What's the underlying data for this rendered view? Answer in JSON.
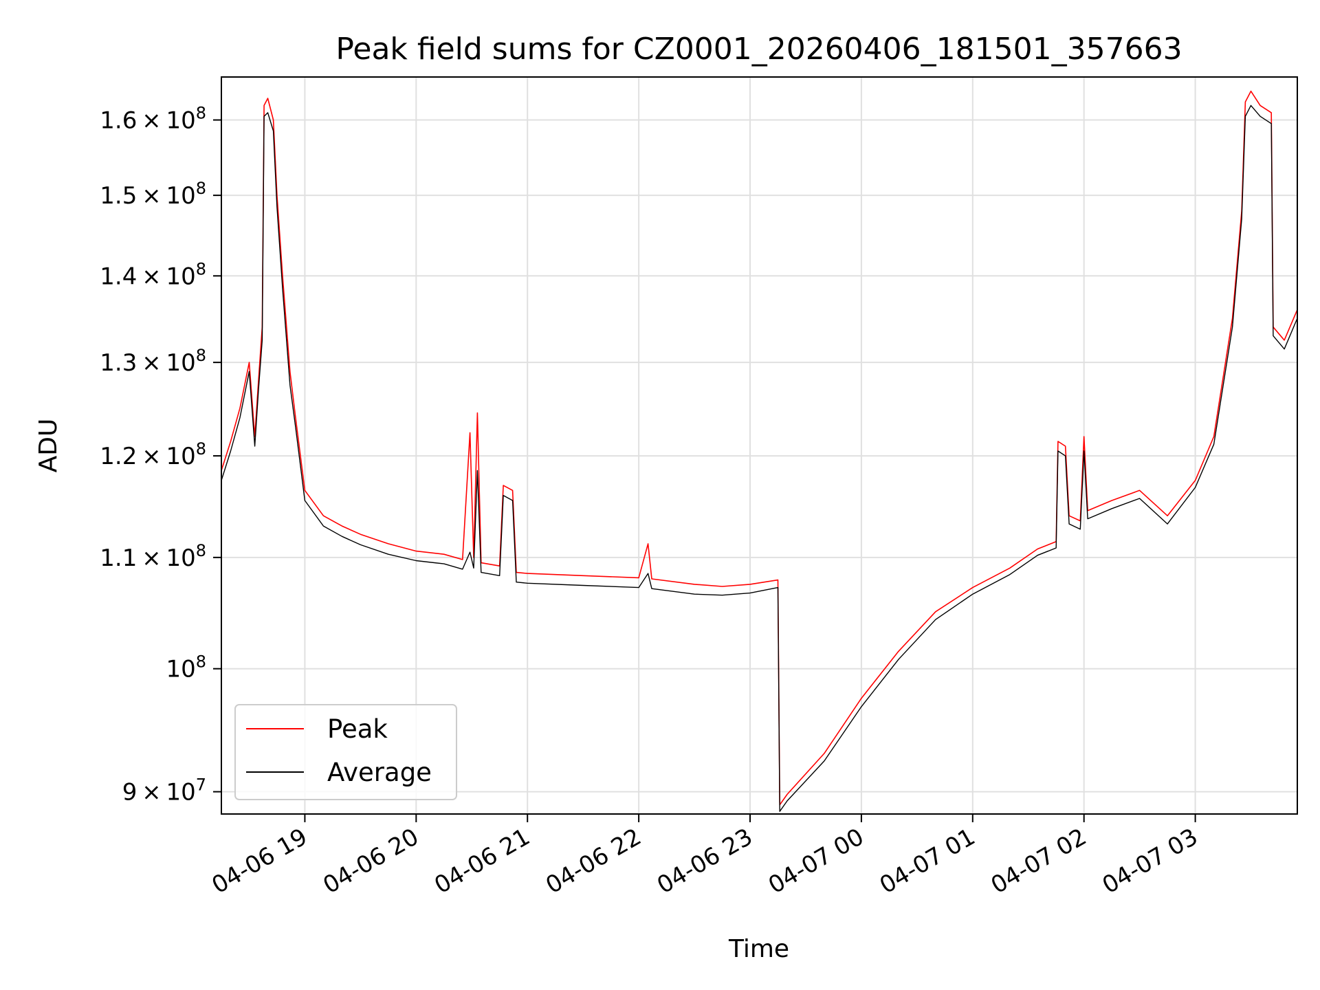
{
  "chart_data": {
    "type": "line",
    "title": "Peak field sums for CZ0001_20260406_181501_357663",
    "xlabel": "Time",
    "ylabel": "ADU",
    "y_scale": "log",
    "grid": true,
    "legend_placement": "lower-left",
    "xlim": [
      "2026-04-06 18:15",
      "2026-04-07 03:55"
    ],
    "ylim": [
      88300000,
      166000000
    ],
    "x_ticks": [
      {
        "value": "2026-04-06 19:00",
        "label": "04-06 19"
      },
      {
        "value": "2026-04-06 20:00",
        "label": "04-06 20"
      },
      {
        "value": "2026-04-06 21:00",
        "label": "04-06 21"
      },
      {
        "value": "2026-04-06 22:00",
        "label": "04-06 22"
      },
      {
        "value": "2026-04-06 23:00",
        "label": "04-06 23"
      },
      {
        "value": "2026-04-07 00:00",
        "label": "04-07 00"
      },
      {
        "value": "2026-04-07 01:00",
        "label": "04-07 01"
      },
      {
        "value": "2026-04-07 02:00",
        "label": "04-07 02"
      },
      {
        "value": "2026-04-07 03:00",
        "label": "04-07 03"
      }
    ],
    "y_ticks": [
      {
        "value": 90000000,
        "mantissa": "9",
        "exp": "7"
      },
      {
        "value": 100000000,
        "mantissa": "",
        "exp": "8"
      },
      {
        "value": 110000000,
        "mantissa": "1.1",
        "exp": "8"
      },
      {
        "value": 120000000,
        "mantissa": "1.2",
        "exp": "8"
      },
      {
        "value": 130000000,
        "mantissa": "1.3",
        "exp": "8"
      },
      {
        "value": 140000000,
        "mantissa": "1.4",
        "exp": "8"
      },
      {
        "value": 150000000,
        "mantissa": "1.5",
        "exp": "8"
      },
      {
        "value": 160000000,
        "mantissa": "1.6",
        "exp": "8"
      }
    ],
    "series": [
      {
        "name": "Peak",
        "color": "#ff0000",
        "points": [
          [
            "2026-04-06 18:15",
            118500000
          ],
          [
            "2026-04-06 18:20",
            121500000
          ],
          [
            "2026-04-06 18:25",
            125000000
          ],
          [
            "2026-04-06 18:30",
            130000000
          ],
          [
            "2026-04-06 18:33",
            122000000
          ],
          [
            "2026-04-06 18:35",
            128000000
          ],
          [
            "2026-04-06 18:37",
            134000000
          ],
          [
            "2026-04-06 18:38",
            162000000
          ],
          [
            "2026-04-06 18:40",
            163000000
          ],
          [
            "2026-04-06 18:43",
            160000000
          ],
          [
            "2026-04-06 18:45",
            150000000
          ],
          [
            "2026-04-06 18:48",
            140000000
          ],
          [
            "2026-04-06 18:52",
            129000000
          ],
          [
            "2026-04-06 18:55",
            124000000
          ],
          [
            "2026-04-06 19:00",
            116500000
          ],
          [
            "2026-04-06 19:10",
            114000000
          ],
          [
            "2026-04-06 19:20",
            113000000
          ],
          [
            "2026-04-06 19:30",
            112200000
          ],
          [
            "2026-04-06 19:45",
            111300000
          ],
          [
            "2026-04-06 20:00",
            110600000
          ],
          [
            "2026-04-06 20:15",
            110300000
          ],
          [
            "2026-04-06 20:25",
            109800000
          ],
          [
            "2026-04-06 20:29",
            122400000
          ],
          [
            "2026-04-06 20:31",
            110000000
          ],
          [
            "2026-04-06 20:33",
            124500000
          ],
          [
            "2026-04-06 20:35",
            109500000
          ],
          [
            "2026-04-06 20:45",
            109200000
          ],
          [
            "2026-04-06 20:47",
            117000000
          ],
          [
            "2026-04-06 20:52",
            116500000
          ],
          [
            "2026-04-06 20:54",
            108600000
          ],
          [
            "2026-04-06 21:00",
            108500000
          ],
          [
            "2026-04-06 21:30",
            108300000
          ],
          [
            "2026-04-06 22:00",
            108100000
          ],
          [
            "2026-04-06 22:05",
            111300000
          ],
          [
            "2026-04-06 22:07",
            108000000
          ],
          [
            "2026-04-06 22:30",
            107500000
          ],
          [
            "2026-04-06 22:45",
            107300000
          ],
          [
            "2026-04-06 23:00",
            107500000
          ],
          [
            "2026-04-06 23:15",
            107900000
          ],
          [
            "2026-04-06 23:16",
            89000000
          ],
          [
            "2026-04-06 23:20",
            89800000
          ],
          [
            "2026-04-06 23:40",
            93000000
          ],
          [
            "2026-04-07 00:00",
            97500000
          ],
          [
            "2026-04-07 00:20",
            101500000
          ],
          [
            "2026-04-07 00:40",
            105000000
          ],
          [
            "2026-04-07 01:00",
            107200000
          ],
          [
            "2026-04-07 01:20",
            109000000
          ],
          [
            "2026-04-07 01:35",
            110800000
          ],
          [
            "2026-04-07 01:45",
            111500000
          ],
          [
            "2026-04-07 01:46",
            121500000
          ],
          [
            "2026-04-07 01:50",
            121000000
          ],
          [
            "2026-04-07 01:52",
            114000000
          ],
          [
            "2026-04-07 01:58",
            113500000
          ],
          [
            "2026-04-07 02:00",
            122000000
          ],
          [
            "2026-04-07 02:02",
            114500000
          ],
          [
            "2026-04-07 02:15",
            115500000
          ],
          [
            "2026-04-07 02:30",
            116500000
          ],
          [
            "2026-04-07 02:45",
            114000000
          ],
          [
            "2026-04-07 03:00",
            117500000
          ],
          [
            "2026-04-07 03:10",
            122000000
          ],
          [
            "2026-04-07 03:20",
            135000000
          ],
          [
            "2026-04-07 03:25",
            148000000
          ],
          [
            "2026-04-07 03:27",
            162500000
          ],
          [
            "2026-04-07 03:30",
            164000000
          ],
          [
            "2026-04-07 03:35",
            162000000
          ],
          [
            "2026-04-07 03:41",
            161000000
          ],
          [
            "2026-04-07 03:42",
            134000000
          ],
          [
            "2026-04-07 03:48",
            132500000
          ],
          [
            "2026-04-07 03:55",
            136000000
          ]
        ]
      },
      {
        "name": "Average",
        "color": "#000000",
        "points": [
          [
            "2026-04-06 18:15",
            117500000
          ],
          [
            "2026-04-06 18:20",
            120500000
          ],
          [
            "2026-04-06 18:25",
            124000000
          ],
          [
            "2026-04-06 18:30",
            129000000
          ],
          [
            "2026-04-06 18:33",
            121000000
          ],
          [
            "2026-04-06 18:35",
            127000000
          ],
          [
            "2026-04-06 18:37",
            132500000
          ],
          [
            "2026-04-06 18:38",
            160500000
          ],
          [
            "2026-04-06 18:40",
            161000000
          ],
          [
            "2026-04-06 18:43",
            158500000
          ],
          [
            "2026-04-06 18:45",
            148500000
          ],
          [
            "2026-04-06 18:48",
            138500000
          ],
          [
            "2026-04-06 18:52",
            127500000
          ],
          [
            "2026-04-06 18:55",
            123000000
          ],
          [
            "2026-04-06 19:00",
            115500000
          ],
          [
            "2026-04-06 19:10",
            113000000
          ],
          [
            "2026-04-06 19:20",
            112000000
          ],
          [
            "2026-04-06 19:30",
            111200000
          ],
          [
            "2026-04-06 19:45",
            110300000
          ],
          [
            "2026-04-06 20:00",
            109700000
          ],
          [
            "2026-04-06 20:15",
            109400000
          ],
          [
            "2026-04-06 20:25",
            108900000
          ],
          [
            "2026-04-06 20:29",
            110500000
          ],
          [
            "2026-04-06 20:31",
            109000000
          ],
          [
            "2026-04-06 20:33",
            118500000
          ],
          [
            "2026-04-06 20:35",
            108600000
          ],
          [
            "2026-04-06 20:45",
            108300000
          ],
          [
            "2026-04-06 20:47",
            116000000
          ],
          [
            "2026-04-06 20:52",
            115500000
          ],
          [
            "2026-04-06 20:54",
            107700000
          ],
          [
            "2026-04-06 21:00",
            107600000
          ],
          [
            "2026-04-06 21:30",
            107400000
          ],
          [
            "2026-04-06 22:00",
            107200000
          ],
          [
            "2026-04-06 22:05",
            108500000
          ],
          [
            "2026-04-06 22:07",
            107100000
          ],
          [
            "2026-04-06 22:30",
            106600000
          ],
          [
            "2026-04-06 22:45",
            106500000
          ],
          [
            "2026-04-06 23:00",
            106700000
          ],
          [
            "2026-04-06 23:15",
            107200000
          ],
          [
            "2026-04-06 23:16",
            88500000
          ],
          [
            "2026-04-06 23:20",
            89300000
          ],
          [
            "2026-04-06 23:40",
            92400000
          ],
          [
            "2026-04-07 00:00",
            96800000
          ],
          [
            "2026-04-07 00:20",
            100800000
          ],
          [
            "2026-04-07 00:40",
            104300000
          ],
          [
            "2026-04-07 01:00",
            106600000
          ],
          [
            "2026-04-07 01:20",
            108400000
          ],
          [
            "2026-04-07 01:35",
            110200000
          ],
          [
            "2026-04-07 01:45",
            110900000
          ],
          [
            "2026-04-07 01:46",
            120500000
          ],
          [
            "2026-04-07 01:50",
            120000000
          ],
          [
            "2026-04-07 01:52",
            113200000
          ],
          [
            "2026-04-07 01:58",
            112700000
          ],
          [
            "2026-04-07 02:00",
            120500000
          ],
          [
            "2026-04-07 02:02",
            113700000
          ],
          [
            "2026-04-07 02:15",
            114700000
          ],
          [
            "2026-04-07 02:30",
            115700000
          ],
          [
            "2026-04-07 02:45",
            113200000
          ],
          [
            "2026-04-07 03:00",
            116800000
          ],
          [
            "2026-04-07 03:10",
            121200000
          ],
          [
            "2026-04-07 03:20",
            134000000
          ],
          [
            "2026-04-07 03:25",
            147000000
          ],
          [
            "2026-04-07 03:27",
            160500000
          ],
          [
            "2026-04-07 03:30",
            162000000
          ],
          [
            "2026-04-07 03:35",
            160500000
          ],
          [
            "2026-04-07 03:41",
            159500000
          ],
          [
            "2026-04-07 03:42",
            133000000
          ],
          [
            "2026-04-07 03:48",
            131500000
          ],
          [
            "2026-04-07 03:55",
            135000000
          ]
        ]
      }
    ]
  }
}
